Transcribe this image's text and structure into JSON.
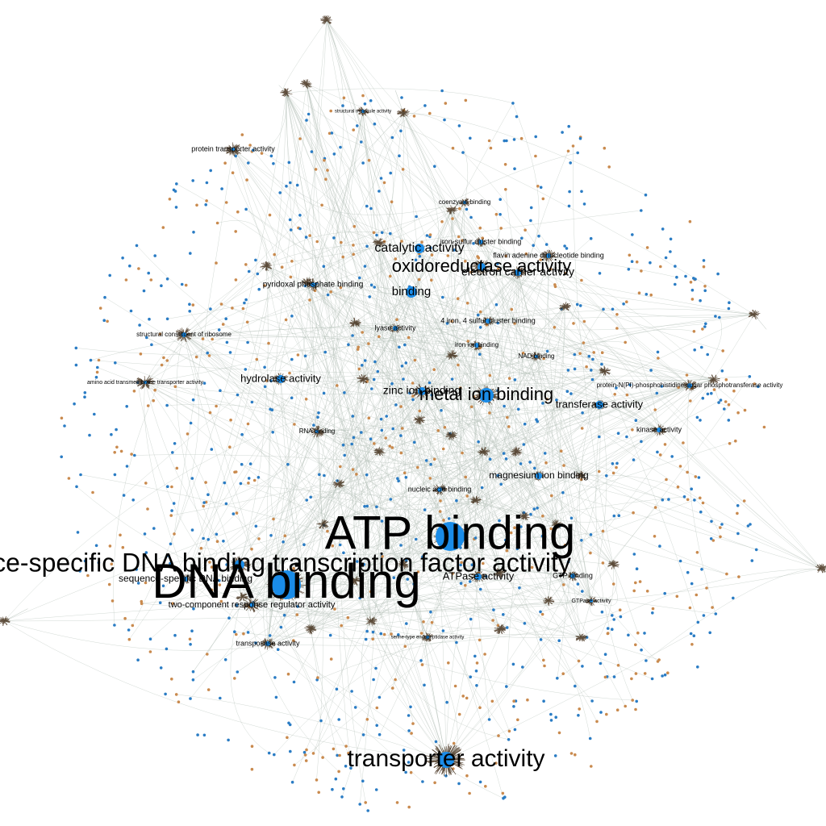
{
  "nodes": [
    {
      "label": "ATP binding"
    },
    {
      "label": "DNA binding"
    },
    {
      "label": "sequence-specific DNA binding transcription factor activity"
    },
    {
      "label": "transporter activity"
    },
    {
      "label": "metal ion binding"
    },
    {
      "label": "oxidoreductase activity"
    },
    {
      "label": "electron carrier activity"
    },
    {
      "label": "catalytic activity"
    },
    {
      "label": "binding"
    },
    {
      "label": "zinc ion binding"
    },
    {
      "label": "hydrolase activity"
    },
    {
      "label": "transferase activity"
    },
    {
      "label": "magnesium ion binding"
    },
    {
      "label": "ATPase activity"
    },
    {
      "label": "two-component response regulator activity"
    },
    {
      "label": "sequence-specific DNA binding"
    },
    {
      "label": "transposase activity"
    },
    {
      "label": "nucleic acid binding"
    },
    {
      "label": "RNA binding"
    },
    {
      "label": "kinase activity"
    },
    {
      "label": "GTP binding"
    },
    {
      "label": "protein transporter activity"
    },
    {
      "label": "pyridoxal phosphate binding"
    },
    {
      "label": "structural constituent of ribosome"
    },
    {
      "label": "amino acid transmembrane transporter activity"
    },
    {
      "label": "flavin adenine dinucleotide binding"
    },
    {
      "label": "iron-sulfur cluster binding"
    },
    {
      "label": "4 iron, 4 sulfur cluster binding"
    },
    {
      "label": "lyase activity"
    },
    {
      "label": "iron ion binding"
    },
    {
      "label": "NAD binding"
    },
    {
      "label": "coenzyme binding"
    },
    {
      "label": "protein-N(PI)-phosphohistidine-sugar phosphotransferase activity"
    },
    {
      "label": "GTPase activity"
    },
    {
      "label": "serine-type endopeptidase activity"
    },
    {
      "label": "structural molecule activity"
    }
  ]
}
